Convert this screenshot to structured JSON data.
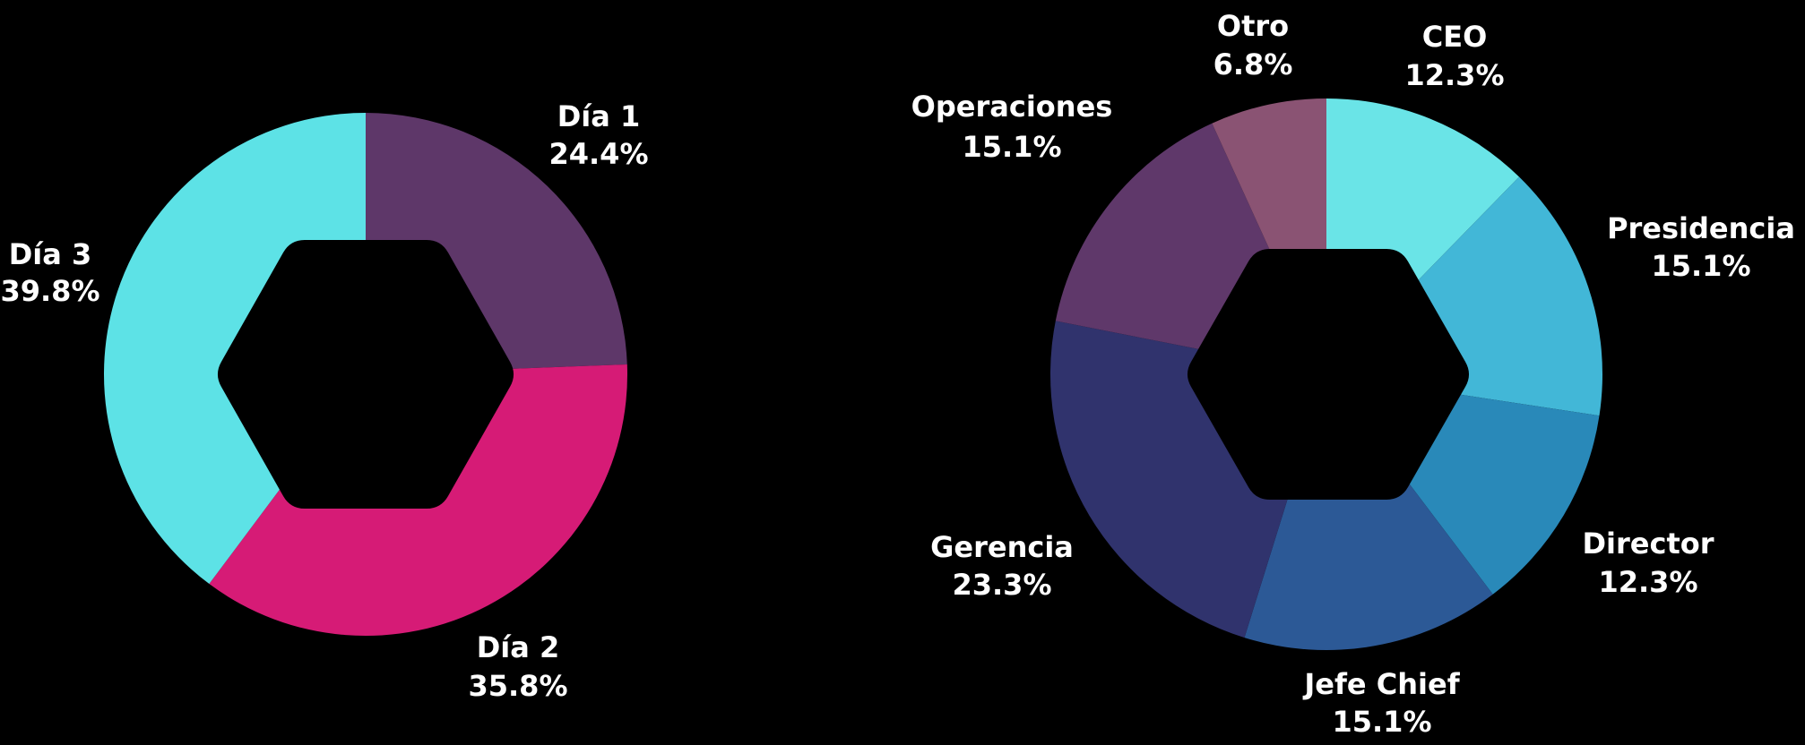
{
  "chart_data": [
    {
      "type": "pie",
      "title": "",
      "slices": [
        {
          "label": "Día 1",
          "value": 24.4,
          "value_text": "24.4%",
          "color": "#5e3769"
        },
        {
          "label": "Día 2",
          "value": 35.8,
          "value_text": "35.8%",
          "color": "#d61b76"
        },
        {
          "label": "Día 3",
          "value": 39.8,
          "value_text": "39.8%",
          "color": "#5de2e6"
        }
      ],
      "start": "top",
      "direction": "clockwise",
      "center_shape": "hexagon",
      "hole_color": "#000000"
    },
    {
      "type": "pie",
      "title": "",
      "slices": [
        {
          "label": "CEO",
          "value": 12.3,
          "value_text": "12.3%",
          "color": "#6ae4e7"
        },
        {
          "label": "Presidencia",
          "value": 15.1,
          "value_text": "15.1%",
          "color": "#42b7d7"
        },
        {
          "label": "Director",
          "value": 12.3,
          "value_text": "12.3%",
          "color": "#2989b9"
        },
        {
          "label": "Jefe Chief",
          "value": 15.1,
          "value_text": "15.1%",
          "color": "#2c5996"
        },
        {
          "label": "Gerencia",
          "value": 23.3,
          "value_text": "23.3%",
          "color": "#30336d"
        },
        {
          "label": "Operaciones",
          "value": 15.1,
          "value_text": "15.1%",
          "color": "#5f386a"
        },
        {
          "label": "Otro",
          "value": 6.8,
          "value_text": "6.8%",
          "color": "#8a5373"
        }
      ],
      "start": "top",
      "direction": "clockwise",
      "center_shape": "hexagon",
      "hole_color": "#000000"
    }
  ]
}
